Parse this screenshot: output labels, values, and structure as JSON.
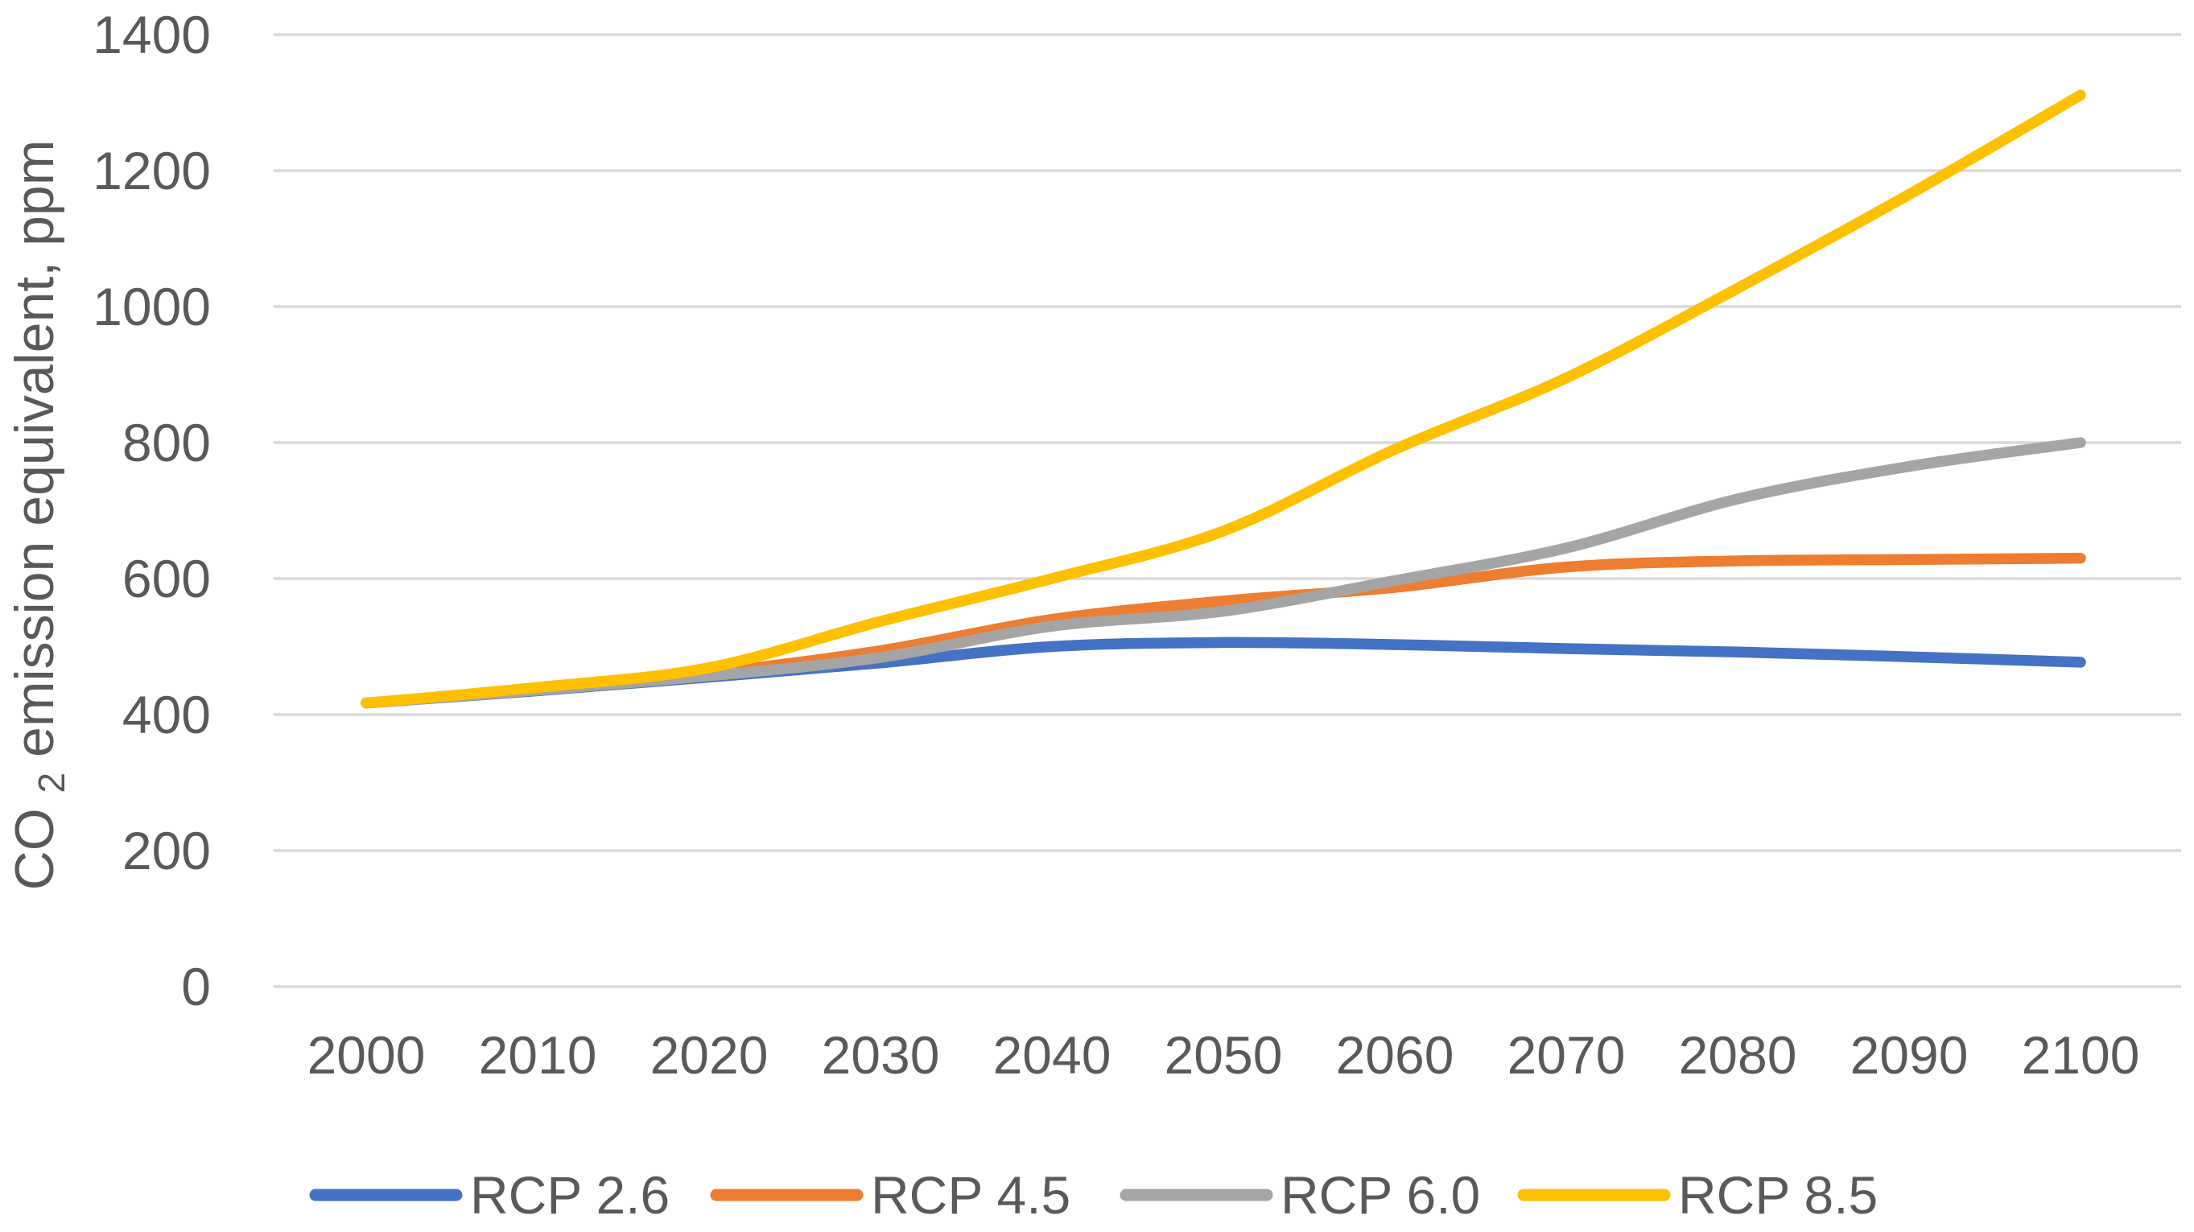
{
  "chart_data": {
    "type": "line",
    "title": "",
    "xlabel": "",
    "ylabel_pre": "CO",
    "ylabel_sub": "2",
    "ylabel_post": " emission equivalent, ppm",
    "x_years": [
      "2000",
      "2010",
      "2020",
      "2030",
      "2040",
      "2050",
      "2060",
      "2070",
      "2080",
      "2090",
      "2100"
    ],
    "y_ticks": [
      "0",
      "200",
      "400",
      "600",
      "800",
      "1000",
      "1200",
      "1400"
    ],
    "ylim": [
      0,
      1400
    ],
    "grid": true,
    "legend_position": "bottom",
    "line_style": "smoothed, round caps, no markers",
    "background_color": "#FFFFFF",
    "gridline_color": "#D9D9D9",
    "axis_text_color": "#595959",
    "series": [
      {
        "name": "RCP 2.6",
        "color": "#4472C4",
        "values": [
          417,
          435,
          455,
          476,
          500,
          506,
          503,
          497,
          492,
          485,
          477
        ]
      },
      {
        "name": "RCP 4.5",
        "color": "#ED7D31",
        "values": [
          417,
          437,
          461,
          494,
          540,
          567,
          587,
          617,
          626,
          628,
          630
        ]
      },
      {
        "name": "RCP 6.0",
        "color": "#A5A5A5",
        "values": [
          417,
          436,
          457,
          484,
          530,
          552,
          597,
          645,
          717,
          765,
          800
        ]
      },
      {
        "name": "RCP 8.5",
        "color": "#FFC000",
        "values": [
          417,
          440,
          469,
          537,
          600,
          670,
          790,
          895,
          1027,
          1165,
          1311
        ]
      }
    ]
  }
}
